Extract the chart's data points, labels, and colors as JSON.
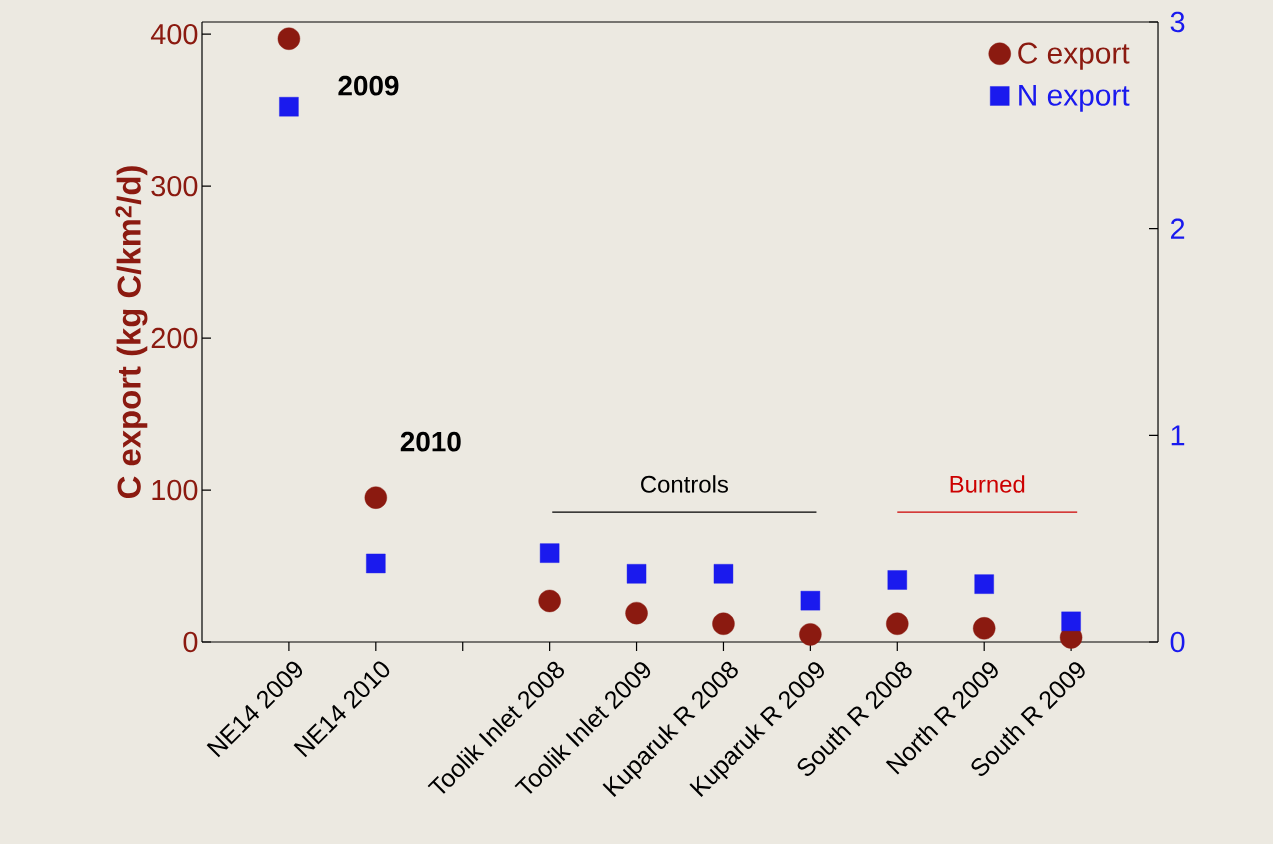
{
  "chart_data": {
    "type": "scatter",
    "categories": [
      "NE14 2009",
      "NE14 2010",
      null,
      "Toolik Inlet 2008",
      "Toolik Inlet 2009",
      "Kuparuk R 2008",
      "Kuparuk R 2009",
      "South R 2008",
      "North R 2009",
      "South R 2009"
    ],
    "series": [
      {
        "name": "C export",
        "color": "#8b1a10",
        "marker": "circle",
        "values": [
          397,
          95,
          null,
          27,
          19,
          12,
          5,
          12,
          9,
          3
        ]
      },
      {
        "name": "N export",
        "color": "#1a1aee",
        "marker": "square",
        "axis": "y2",
        "values": [
          2.59,
          0.38,
          null,
          0.43,
          0.33,
          0.33,
          0.2,
          0.3,
          0.28,
          0.1
        ]
      }
    ],
    "ylabel": "C export (kg C/km$^{2}$/d)",
    "ylim": [
      0,
      408
    ],
    "yticks": [
      0,
      100,
      200,
      300,
      400
    ],
    "y2lim": [
      0,
      3
    ],
    "y2ticks": [
      0,
      1,
      2,
      3
    ],
    "annotations": [
      {
        "text": "2009",
        "x": "NE14 2009",
        "y": 397
      },
      {
        "text": "2010",
        "x": "NE14 2010",
        "y": 95
      },
      "Controls",
      "Burned"
    ],
    "legend": "top right",
    "grid": false
  }
}
